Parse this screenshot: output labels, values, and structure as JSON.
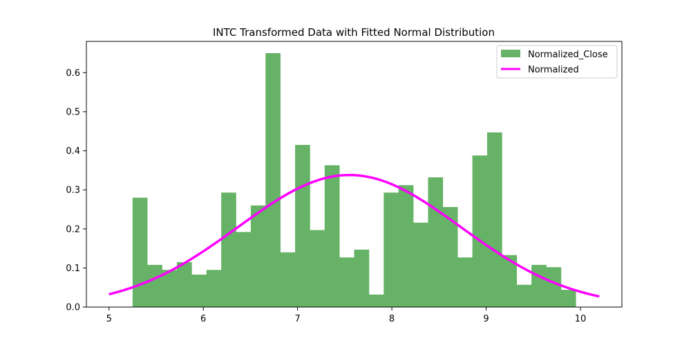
{
  "chart_data": {
    "type": "histogram",
    "title": "INTC Transformed Data with Fitted Normal Distribution",
    "xlabel": "",
    "ylabel": "",
    "xlim": [
      4.76,
      10.44
    ],
    "ylim": [
      0,
      0.68
    ],
    "grid": false,
    "legend_position": "top-right",
    "x_ticks": [
      5,
      6,
      7,
      8,
      9,
      10
    ],
    "y_ticks": [
      0.0,
      0.1,
      0.2,
      0.3,
      0.4,
      0.5,
      0.6
    ],
    "x_tick_labels": [
      "5",
      "6",
      "7",
      "8",
      "9",
      "10"
    ],
    "y_tick_labels": [
      "0.0",
      "0.1",
      "0.2",
      "0.3",
      "0.4",
      "0.5",
      "0.6"
    ],
    "series": [
      {
        "name": "Normalized_Close",
        "kind": "histogram",
        "color": "#66b266",
        "bin_start": 5.25,
        "bin_width": 0.1567,
        "values": [
          0.28,
          0.108,
          0.095,
          0.115,
          0.083,
          0.095,
          0.293,
          0.192,
          0.26,
          0.65,
          0.14,
          0.415,
          0.197,
          0.363,
          0.127,
          0.147,
          0.032,
          0.293,
          0.312,
          0.216,
          0.332,
          0.256,
          0.127,
          0.388,
          0.447,
          0.133,
          0.057,
          0.108,
          0.102,
          0.044
        ]
      },
      {
        "name": "Normalized",
        "kind": "line",
        "color": "#ff00ff",
        "x_start": 5.0,
        "x_end": 10.2,
        "mean": 7.55,
        "std": 1.18,
        "peak": 0.338
      }
    ]
  }
}
